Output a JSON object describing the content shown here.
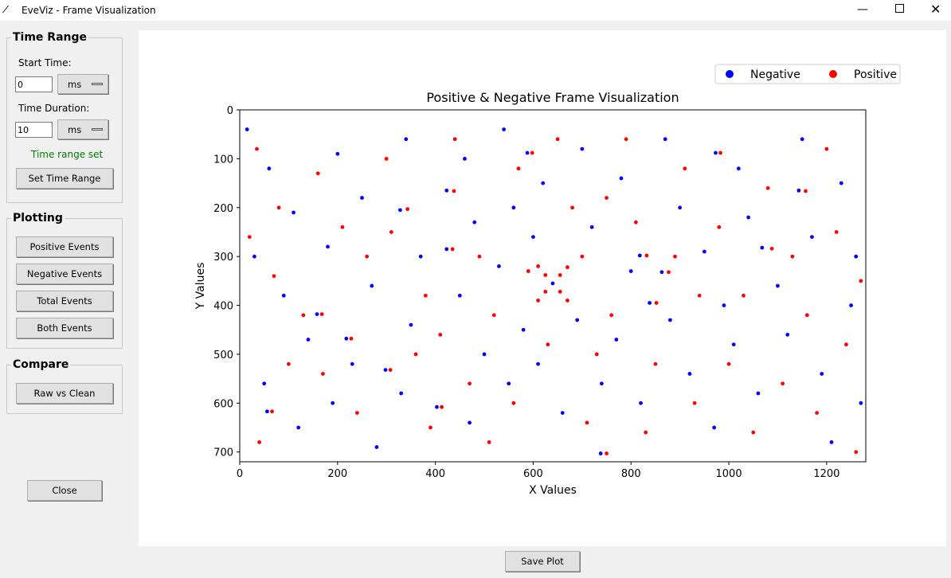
{
  "window": {
    "title": "EveViz - Frame Visualization"
  },
  "time_range": {
    "title": "Time Range",
    "start_label": "Start Time:",
    "start_value": "0",
    "start_unit": "ms",
    "duration_label": "Time Duration:",
    "duration_value": "10",
    "duration_unit": "ms",
    "status": "Time range set",
    "button": "Set Time Range"
  },
  "plotting": {
    "title": "Plotting",
    "buttons": [
      "Positive Events",
      "Negative Events",
      "Total Events",
      "Both Events"
    ]
  },
  "compare": {
    "title": "Compare",
    "buttons": [
      "Raw vs Clean"
    ]
  },
  "close": "Close",
  "save": "Save Plot",
  "chart_data": {
    "type": "scatter",
    "title": "Positive & Negative Frame Visualization",
    "x_label": "X Values",
    "y_label": "Y Values",
    "xlim": [
      0,
      1280
    ],
    "ylim": [
      720,
      0
    ],
    "xticks": [
      0,
      200,
      400,
      600,
      800,
      1000,
      1200
    ],
    "yticks": [
      0,
      100,
      200,
      300,
      400,
      500,
      600,
      700
    ],
    "grid": false,
    "series": [
      {
        "name": "Negative",
        "color": "#0000ff",
        "x": [
          15,
          60,
          110,
          30,
          90,
          140,
          50,
          120,
          200,
          250,
          180,
          270,
          230,
          190,
          280,
          340,
          370,
          350,
          330,
          460,
          480,
          450,
          500,
          470,
          540,
          560,
          530,
          580,
          550,
          620,
          600,
          610,
          660,
          700,
          720,
          690,
          740,
          780,
          800,
          770,
          820,
          870,
          900,
          880,
          920,
          950,
          990,
          970,
          1020,
          1040,
          1010,
          1060,
          1100,
          1120,
          1150,
          1170,
          1190,
          1230,
          1250,
          1210,
          1270,
          1260,
          328,
          423,
          588,
          973,
          1143,
          423,
          818,
          863,
          838,
          1068,
          158,
          218,
          298,
          403,
          56,
          738,
          640
        ],
        "values": [
          40,
          120,
          210,
          300,
          380,
          470,
          560,
          650,
          90,
          180,
          280,
          360,
          520,
          600,
          690,
          60,
          300,
          440,
          580,
          100,
          230,
          380,
          500,
          640,
          40,
          200,
          320,
          450,
          560,
          150,
          260,
          520,
          620,
          80,
          240,
          430,
          560,
          140,
          330,
          470,
          600,
          60,
          200,
          430,
          540,
          290,
          400,
          650,
          120,
          220,
          480,
          580,
          360,
          460,
          60,
          260,
          540,
          150,
          400,
          680,
          600,
          300,
          205,
          165,
          88,
          88,
          165,
          285,
          298,
          332,
          395,
          282,
          418,
          468,
          532,
          608,
          617,
          703,
          355
        ]
      },
      {
        "name": "Positive",
        "color": "#ff0000",
        "x": [
          35,
          80,
          20,
          70,
          130,
          100,
          40,
          160,
          210,
          260,
          170,
          240,
          300,
          310,
          380,
          360,
          390,
          440,
          410,
          490,
          520,
          470,
          510,
          570,
          590,
          560,
          650,
          680,
          630,
          700,
          710,
          750,
          760,
          730,
          790,
          810,
          850,
          830,
          890,
          910,
          940,
          930,
          980,
          1000,
          1030,
          1050,
          1080,
          1110,
          1130,
          1160,
          1200,
          1180,
          1220,
          1240,
          1270,
          1260,
          343,
          438,
          598,
          983,
          1157,
          435,
          832,
          877,
          852,
          1088,
          168,
          228,
          308,
          413,
          66,
          750,
          610,
          625,
          655,
          670,
          670,
          655,
          625,
          610
        ],
        "values": [
          80,
          200,
          260,
          340,
          420,
          520,
          680,
          130,
          240,
          300,
          540,
          620,
          100,
          250,
          380,
          500,
          650,
          60,
          460,
          300,
          420,
          560,
          680,
          120,
          330,
          600,
          60,
          200,
          480,
          300,
          640,
          180,
          420,
          500,
          60,
          230,
          520,
          660,
          300,
          120,
          380,
          600,
          240,
          520,
          380,
          660,
          160,
          560,
          300,
          420,
          80,
          620,
          250,
          480,
          350,
          700,
          203,
          166,
          88,
          88,
          166,
          285,
          298,
          332,
          395,
          284,
          418,
          468,
          532,
          608,
          617,
          703,
          320,
          338,
          372,
          390,
          322,
          338,
          372,
          390
        ]
      }
    ]
  }
}
